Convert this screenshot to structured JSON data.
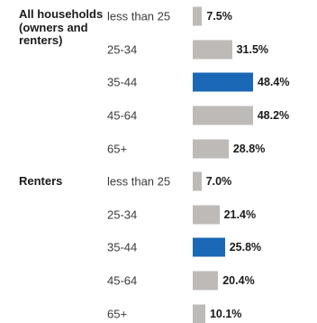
{
  "chart_data": {
    "type": "bar",
    "orientation": "horizontal",
    "categories": [
      "less than 25",
      "25-34",
      "35-44",
      "45-64",
      "65+"
    ],
    "series": [
      {
        "name": "All households (owners and renters)",
        "values": [
          7.5,
          31.5,
          48.4,
          48.2,
          28.8
        ]
      },
      {
        "name": "Renters",
        "values": [
          7.0,
          21.4,
          25.8,
          20.4,
          10.1
        ]
      }
    ],
    "value_labels": [
      [
        "7.5%",
        "31.5%",
        "48.4%",
        "48.2%",
        "28.8%"
      ],
      [
        "7.0%",
        "21.4%",
        "25.8%",
        "20.4%",
        "10.1%"
      ]
    ],
    "highlight_category": "35-44",
    "colors": {
      "bar": "#bdbab8",
      "highlight": "#1a68b6"
    },
    "xlim": [
      0,
      48.4
    ]
  }
}
